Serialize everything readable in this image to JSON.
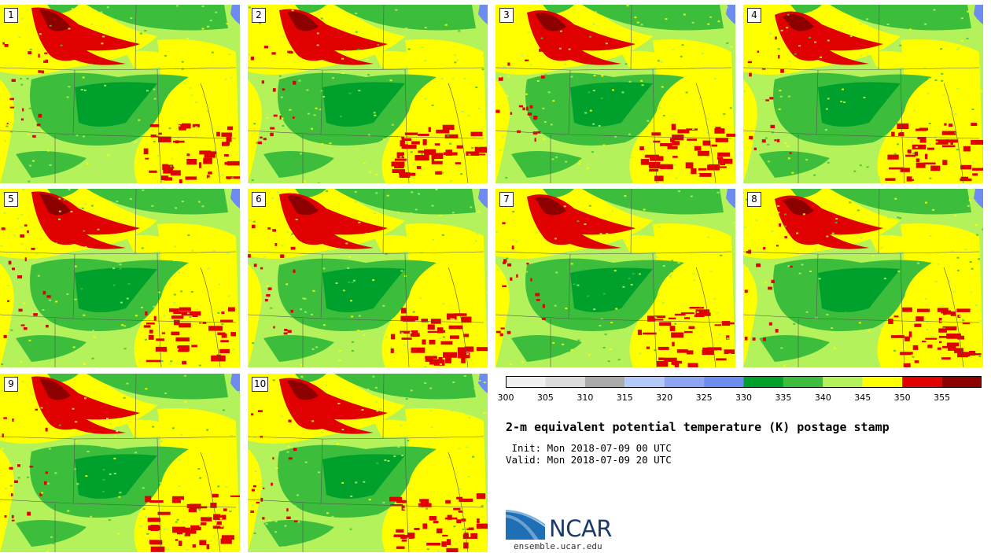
{
  "panels": [
    {
      "label": "1"
    },
    {
      "label": "2"
    },
    {
      "label": "3"
    },
    {
      "label": "4"
    },
    {
      "label": "5"
    },
    {
      "label": "6"
    },
    {
      "label": "7"
    },
    {
      "label": "8"
    },
    {
      "label": "9"
    },
    {
      "label": "10"
    }
  ],
  "colorbar": {
    "ticks": [
      "300",
      "305",
      "310",
      "315",
      "320",
      "325",
      "330",
      "335",
      "340",
      "345",
      "350",
      "355"
    ],
    "colors": [
      "#f0f0f0",
      "#dcdcdc",
      "#aaaaaa",
      "#b4c8fa",
      "#8ca5f5",
      "#6e8cf0",
      "#00a02d",
      "#3cbe3c",
      "#b3f25a",
      "#ffff00",
      "#e10000",
      "#8c0000"
    ]
  },
  "title": "2-m equivalent potential temperature (K) postage stamp",
  "init": " Init: Mon 2018-07-09 00 UTC",
  "valid": "Valid: Mon 2018-07-09 20 UTC",
  "logo": {
    "name": "NCAR",
    "url": "ensemble.ucar.edu"
  }
}
